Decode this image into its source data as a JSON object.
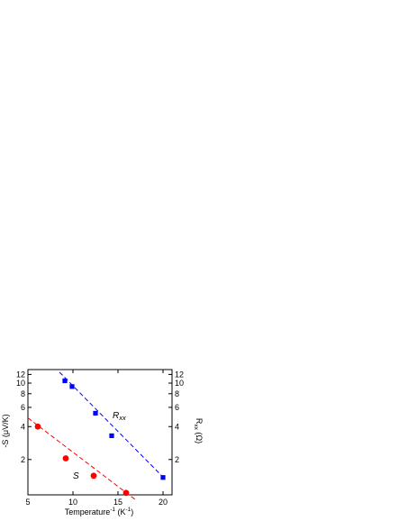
{
  "chart_data": {
    "type": "scatter",
    "xlabel": "Temperature",
    "xlabel_superscript": "-1",
    "xlabel_unit": "(K",
    "xlabel_unit_superscript": "-1",
    "xlabel_close": ")",
    "ylabel_left": "-S (μV/K)",
    "ylabel_right_main": "R",
    "ylabel_right_sub": "xx",
    "ylabel_right_unit": "(Ω)",
    "xlim": [
      5,
      21
    ],
    "ylim": [
      0.95,
      13.3
    ],
    "yscale": "log",
    "x_ticks": [
      5,
      10,
      15,
      20
    ],
    "y_ticks_left": [
      2,
      4,
      6,
      8,
      10,
      12
    ],
    "y_ticks_right": [
      2,
      4,
      6,
      8,
      10,
      12
    ],
    "series": [
      {
        "name": "S",
        "label_main": "S",
        "label_sub": "",
        "color": "#ff0000",
        "marker": "circle",
        "x": [
          6.1,
          9.2,
          12.3,
          15.9
        ],
        "y": [
          4.0,
          2.05,
          1.42,
          0.99
        ],
        "fit_x": [
          5.0,
          17.0
        ],
        "fit_y": [
          4.8,
          0.85
        ]
      },
      {
        "name": "Rxx",
        "label_main": "R",
        "label_sub": "xx",
        "color": "#0000ff",
        "marker": "square",
        "x": [
          9.1,
          9.9,
          12.5,
          14.3,
          20.0
        ],
        "y": [
          10.5,
          9.3,
          5.3,
          3.3,
          1.37
        ],
        "fit_x": [
          8.5,
          20.2
        ],
        "fit_y": [
          12.6,
          1.33
        ]
      }
    ]
  }
}
